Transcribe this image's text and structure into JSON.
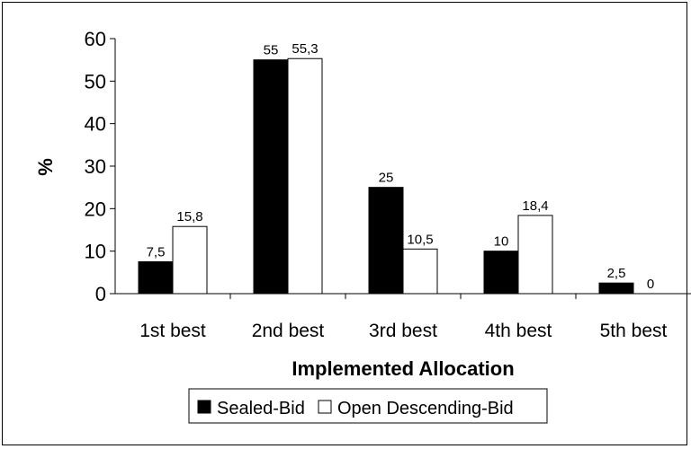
{
  "chart_data": {
    "type": "bar",
    "categories": [
      "1st best",
      "2nd best",
      "3rd best",
      "4th best",
      "5th best"
    ],
    "series": [
      {
        "name": "Sealed-Bid",
        "values": [
          7.5,
          55,
          25,
          10,
          2.5
        ],
        "labels": [
          "7,5",
          "55",
          "25",
          "10",
          "2,5"
        ],
        "color": "#000000"
      },
      {
        "name": "Open Descending-Bid",
        "values": [
          15.8,
          55.3,
          10.5,
          18.4,
          0
        ],
        "labels": [
          "15,8",
          "55,3",
          "10,5",
          "18,4",
          "0"
        ],
        "color": "#ffffff"
      }
    ],
    "title": "",
    "xlabel": "Implemented Allocation",
    "ylabel": "%",
    "ylim": [
      0,
      60
    ],
    "yticks": [
      0,
      10,
      20,
      30,
      40,
      50,
      60
    ],
    "grid": false,
    "legend": "bottom"
  }
}
